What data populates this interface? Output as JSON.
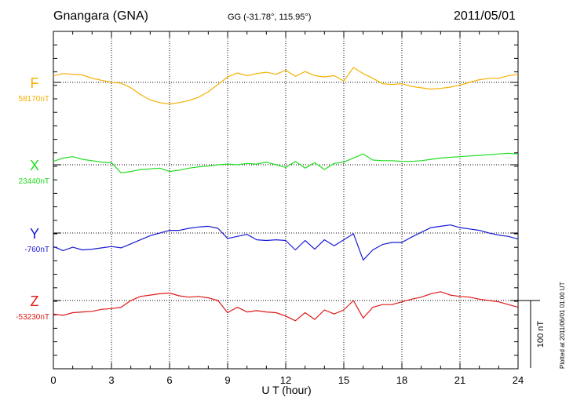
{
  "header": {
    "station": "Gnangara (GNA)",
    "coords": "GG (-31.78°, 115.95°)",
    "date": "2011/05/01",
    "plotted_note": "Plotted at 2011/06/01 01:00 UT"
  },
  "chart_data": {
    "type": "line",
    "xlabel": "U T (hour)",
    "xlim": [
      0,
      24
    ],
    "xticks": [
      0,
      3,
      6,
      9,
      12,
      15,
      18,
      21,
      24
    ],
    "xtick_labels": [
      "0",
      "3",
      "6",
      "9",
      "12",
      "15",
      "18",
      "21",
      "24"
    ],
    "scale_bar_label": "100 nT",
    "scale_bar_nT": 100,
    "grid": true,
    "series": [
      {
        "name": "F",
        "baseline_label": "58170nT",
        "baseline_nT": 58170,
        "color": "#f5b000",
        "x": [
          0,
          0.5,
          1,
          1.5,
          2,
          2.5,
          3,
          3.5,
          4,
          4.5,
          5,
          5.5,
          6,
          6.5,
          7,
          7.5,
          8,
          8.5,
          9,
          9.5,
          10,
          10.5,
          11,
          11.5,
          12,
          12.5,
          13,
          13.5,
          14,
          14.5,
          15,
          15.5,
          16,
          16.5,
          17,
          17.5,
          18,
          18.5,
          19,
          19.5,
          20,
          20.5,
          21,
          21.5,
          22,
          22.5,
          23,
          23.5,
          24
        ],
        "values": [
          58180,
          58183,
          58182,
          58181,
          58176,
          58173,
          58170,
          58169,
          58162,
          58152,
          58144,
          58140,
          58138,
          58140,
          58143,
          58148,
          58156,
          58167,
          58178,
          58184,
          58180,
          58183,
          58185,
          58182,
          58188,
          58179,
          58186,
          58180,
          58178,
          58180,
          58172,
          58192,
          58183,
          58176,
          58168,
          58167,
          58168,
          58164,
          58162,
          58160,
          58161,
          58163,
          58166,
          58170,
          58174,
          58176,
          58176,
          58180,
          58182
        ]
      },
      {
        "name": "X",
        "baseline_label": "23440nT",
        "baseline_nT": 23440,
        "color": "#22dd22",
        "x": [
          0,
          0.5,
          1,
          1.5,
          2,
          2.5,
          3,
          3.5,
          4,
          4.5,
          5,
          5.5,
          6,
          6.5,
          7,
          7.5,
          8,
          8.5,
          9,
          9.5,
          10,
          10.5,
          11,
          11.5,
          12,
          12.5,
          13,
          13.5,
          14,
          14.5,
          15,
          15.5,
          16,
          16.5,
          17,
          17.5,
          18,
          18.5,
          19,
          19.5,
          20,
          20.5,
          21,
          21.5,
          22,
          22.5,
          23,
          23.5,
          24
        ],
        "values": [
          23445,
          23450,
          23452,
          23448,
          23446,
          23444,
          23443,
          23428,
          23430,
          23433,
          23434,
          23435,
          23430,
          23432,
          23435,
          23437,
          23438,
          23440,
          23441,
          23440,
          23442,
          23441,
          23444,
          23440,
          23436,
          23445,
          23435,
          23443,
          23433,
          23442,
          23444,
          23450,
          23456,
          23447,
          23446,
          23446,
          23445,
          23445,
          23446,
          23448,
          23450,
          23451,
          23452,
          23453,
          23454,
          23455,
          23456,
          23457,
          23456
        ]
      },
      {
        "name": "Y",
        "baseline_label": "-760nT",
        "baseline_nT": -760,
        "color": "#1a1ad6",
        "x": [
          0,
          0.5,
          1,
          1.5,
          2,
          2.5,
          3,
          3.5,
          4,
          4.5,
          5,
          5.5,
          6,
          6.5,
          7,
          7.5,
          8,
          8.5,
          9,
          9.5,
          10,
          10.5,
          11,
          11.5,
          12,
          12.5,
          13,
          13.5,
          14,
          14.5,
          15,
          15.5,
          16,
          16.5,
          17,
          17.5,
          18,
          18.5,
          19,
          19.5,
          20,
          20.5,
          21,
          21.5,
          22,
          22.5,
          23,
          23.5,
          24
        ],
        "values": [
          -780,
          -786,
          -781,
          -785,
          -784,
          -782,
          -780,
          -782,
          -776,
          -770,
          -764,
          -760,
          -756,
          -756,
          -753,
          -751,
          -750,
          -753,
          -768,
          -765,
          -762,
          -770,
          -771,
          -770,
          -771,
          -785,
          -771,
          -784,
          -770,
          -779,
          -770,
          -761,
          -800,
          -785,
          -777,
          -774,
          -774,
          -766,
          -759,
          -752,
          -750,
          -748,
          -752,
          -754,
          -756,
          -760,
          -763,
          -765,
          -769
        ]
      },
      {
        "name": "Z",
        "baseline_label": "-53230nT",
        "baseline_nT": -53230,
        "color": "#e01818",
        "x": [
          0,
          0.5,
          1,
          1.5,
          2,
          2.5,
          3,
          3.5,
          4,
          4.5,
          5,
          5.5,
          6,
          6.5,
          7,
          7.5,
          8,
          8.5,
          9,
          9.5,
          10,
          10.5,
          11,
          11.5,
          12,
          12.5,
          13,
          13.5,
          14,
          14.5,
          15,
          15.5,
          16,
          16.5,
          17,
          17.5,
          18,
          18.5,
          19,
          19.5,
          20,
          20.5,
          21,
          21.5,
          22,
          22.5,
          23,
          23.5,
          24
        ],
        "values": [
          -53250,
          -53252,
          -53248,
          -53247,
          -53246,
          -53243,
          -53242,
          -53240,
          -53230,
          -53224,
          -53222,
          -53220,
          -53219,
          -53223,
          -53225,
          -53224,
          -53226,
          -53230,
          -53248,
          -53240,
          -53247,
          -53245,
          -53247,
          -53248,
          -53253,
          -53260,
          -53248,
          -53258,
          -53244,
          -53250,
          -53244,
          -53230,
          -53256,
          -53240,
          -53236,
          -53236,
          -53232,
          -53228,
          -53225,
          -53220,
          -53217,
          -53222,
          -53224,
          -53225,
          -53228,
          -53230,
          -53232,
          -53236,
          -53240
        ]
      }
    ]
  }
}
